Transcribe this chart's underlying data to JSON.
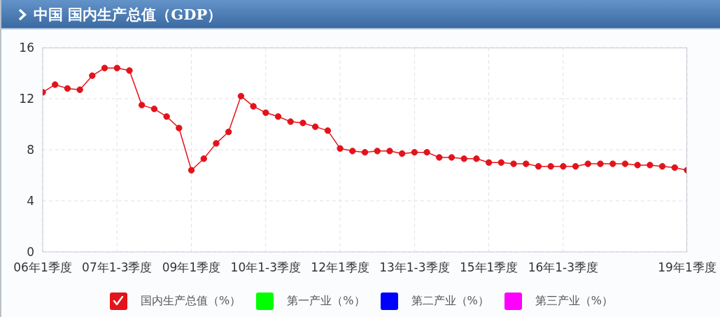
{
  "chart_data": {
    "type": "line",
    "title": "中国 国内生产总值（GDP）",
    "categories": [
      "06年1季度",
      null,
      null,
      null,
      null,
      null,
      "07年1-3季度",
      null,
      null,
      null,
      null,
      null,
      "09年1季度",
      null,
      null,
      null,
      null,
      null,
      "10年1-3季度",
      null,
      null,
      null,
      null,
      null,
      "12年1季度",
      null,
      null,
      null,
      null,
      null,
      "13年1-3季度",
      null,
      null,
      null,
      null,
      null,
      "15年1季度",
      null,
      null,
      null,
      null,
      null,
      "16年1-3季度",
      null,
      null,
      null,
      null,
      null,
      null,
      null,
      null,
      null,
      "19年1季度"
    ],
    "series": [
      {
        "name": "国内生产总值（%）",
        "color": "#e3131b",
        "values": [
          12.5,
          13.1,
          12.8,
          12.7,
          13.8,
          14.4,
          14.4,
          14.2,
          11.5,
          11.2,
          10.6,
          9.7,
          6.4,
          7.3,
          8.5,
          9.4,
          12.2,
          11.4,
          10.9,
          10.6,
          10.2,
          10.1,
          9.8,
          9.5,
          8.1,
          7.9,
          7.8,
          7.9,
          7.9,
          7.7,
          7.8,
          7.8,
          7.4,
          7.4,
          7.3,
          7.3,
          7.0,
          7.0,
          6.9,
          6.9,
          6.7,
          6.7,
          6.7,
          6.7,
          6.9,
          6.9,
          6.9,
          6.9,
          6.8,
          6.8,
          6.7,
          6.6,
          6.4
        ]
      },
      {
        "name": "第一产业（%）",
        "color": "#00ff00",
        "values": [
          null,
          null,
          null,
          null,
          null,
          null,
          null,
          null,
          null,
          null,
          null,
          null,
          null,
          null,
          null,
          null,
          null,
          null,
          null,
          null,
          null,
          null,
          null,
          null,
          null,
          null,
          null,
          null,
          null,
          null,
          null,
          null,
          null,
          null,
          null,
          null,
          null,
          null,
          null,
          null,
          null,
          null,
          null,
          null,
          null,
          null,
          null,
          null,
          null,
          null,
          null,
          null,
          null
        ]
      },
      {
        "name": "第二产业（%）",
        "color": "#0000ff",
        "values": [
          null,
          null,
          null,
          null,
          null,
          null,
          null,
          null,
          null,
          null,
          null,
          null,
          null,
          null,
          null,
          null,
          null,
          null,
          null,
          null,
          null,
          null,
          null,
          null,
          null,
          null,
          null,
          null,
          null,
          null,
          null,
          null,
          null,
          null,
          null,
          null,
          null,
          null,
          null,
          null,
          null,
          null,
          null,
          null,
          null,
          null,
          null,
          null,
          null,
          null,
          null,
          null,
          null
        ]
      },
      {
        "name": "第三产业（%）",
        "color": "#ff00ff",
        "values": [
          null,
          null,
          null,
          null,
          null,
          null,
          null,
          null,
          null,
          null,
          null,
          null,
          null,
          null,
          null,
          null,
          null,
          null,
          null,
          null,
          null,
          null,
          null,
          null,
          null,
          null,
          null,
          null,
          null,
          null,
          null,
          null,
          null,
          null,
          null,
          null,
          null,
          null,
          null,
          null,
          null,
          null,
          null,
          null,
          null,
          null,
          null,
          null,
          null,
          null,
          null,
          null,
          null
        ]
      }
    ],
    "ylim": [
      0,
      16
    ],
    "yticks": [
      0,
      4,
      8,
      12,
      16
    ],
    "grid": true,
    "legend": "bottom",
    "marker": "circle"
  }
}
